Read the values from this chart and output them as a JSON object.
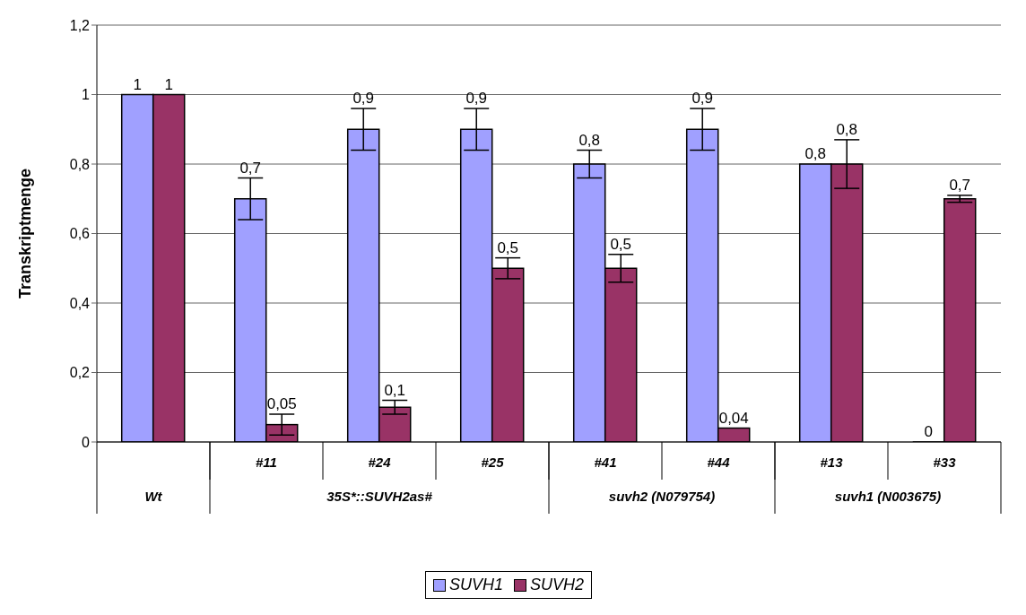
{
  "chart_data": {
    "type": "bar",
    "ylabel": "Transkriptmenge",
    "categories": [
      null,
      "#11",
      "#24",
      "#25",
      "#41",
      "#44",
      "#13",
      "#33"
    ],
    "annotations": [
      "Wt",
      "35S*::SUVH2as#",
      "suvh2 (N079754)",
      "suvh1 (N003675)"
    ],
    "series": [
      {
        "name": "SUVH1",
        "color": "#a0a0ff",
        "values": [
          1,
          0.7,
          0.9,
          0.9,
          0.8,
          0.9,
          0.8,
          0
        ],
        "errors": [
          null,
          0.06,
          0.06,
          0.06,
          0.04,
          0.06,
          null,
          null
        ],
        "value_labels": [
          "1",
          "0,7",
          "0,9",
          "0,9",
          "0,8",
          "0,9",
          "0,8",
          "0"
        ]
      },
      {
        "name": "SUVH2",
        "color": "#993366",
        "values": [
          1,
          0.05,
          0.1,
          0.5,
          0.5,
          0.04,
          0.8,
          0.7
        ],
        "errors": [
          null,
          0.03,
          0.02,
          0.03,
          0.04,
          null,
          0.07,
          0.01
        ],
        "value_labels": [
          "1",
          "0,05",
          "0,1",
          "0,5",
          "0,5",
          "0,04",
          "0,8",
          "0,7"
        ]
      }
    ],
    "ylim": [
      0,
      1.2
    ],
    "yticks": [
      0,
      {
        "value": 0.2,
        "label": "0,2"
      },
      {
        "value": 0.4,
        "label": "0,4"
      },
      {
        "value": 0.6,
        "label": "0,6"
      },
      {
        "value": 0.8,
        "label": "0,8"
      },
      1,
      {
        "value": 1.2,
        "label": "1,2"
      }
    ],
    "grid": "y",
    "legend": "bottom"
  }
}
